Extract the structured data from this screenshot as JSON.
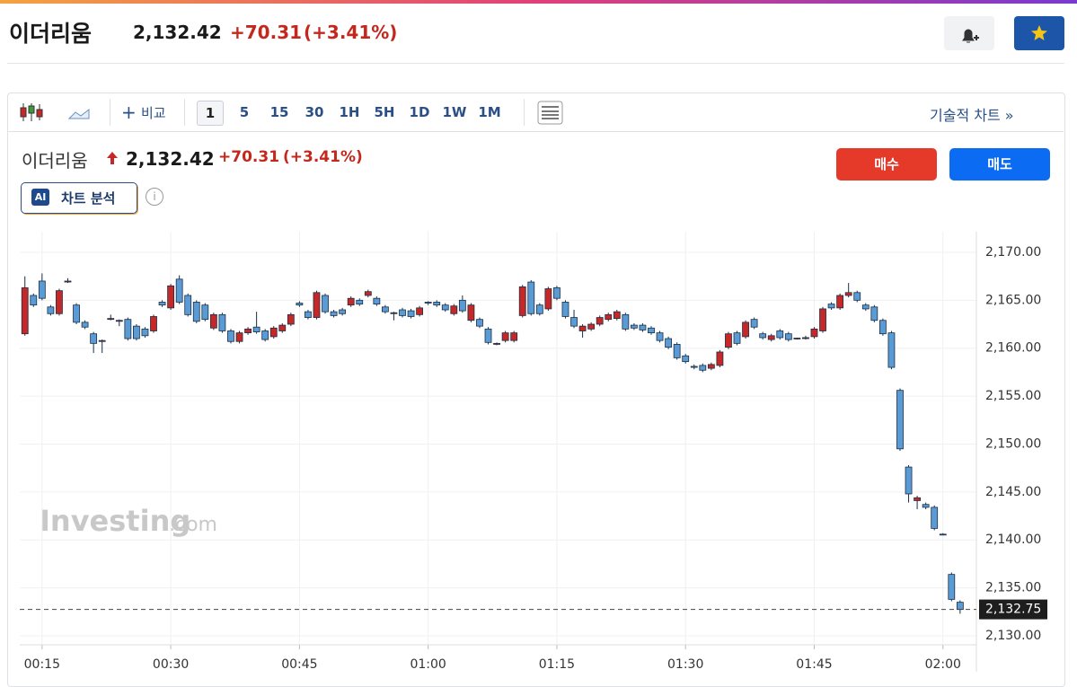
{
  "header": {
    "name": "이더리움",
    "price": "2,132.42",
    "change": "+70.31",
    "change_pct": "(+3.41%)"
  },
  "toolbar": {
    "compare": "비교",
    "intervals": [
      "1",
      "5",
      "15",
      "30",
      "1H",
      "5H",
      "1D",
      "1W",
      "1M"
    ],
    "selected": "1",
    "technical": "기술적 차트 »"
  },
  "quote": {
    "name": "이더리움",
    "price": "2,132.42",
    "change": "+70.31",
    "change_pct": "(+3.41%)"
  },
  "buttons": {
    "buy": "매수",
    "sell": "매도"
  },
  "ai": {
    "icon": "AI",
    "label": "차트 분석"
  },
  "watermark": {
    "brand": "Investing",
    "domain": ".com"
  },
  "chart_data": {
    "type": "candlestick",
    "x": [
      13,
      14,
      15,
      16,
      17,
      18,
      19,
      20,
      21,
      22,
      23,
      24,
      25,
      26,
      27,
      28,
      29,
      30,
      31,
      32,
      33,
      34,
      35,
      36,
      37,
      38,
      39,
      40,
      41,
      42,
      43,
      44,
      45,
      46,
      47,
      48,
      49,
      50,
      51,
      52,
      53,
      54,
      55,
      56,
      57,
      58,
      59,
      60,
      61,
      62,
      63,
      64,
      65,
      66,
      67,
      68,
      69,
      70,
      71,
      72,
      73,
      74,
      75,
      76,
      77,
      78,
      79,
      80,
      81,
      82,
      83,
      84,
      85,
      86,
      87,
      88,
      89,
      90,
      91,
      92,
      93,
      94,
      95,
      96,
      97,
      98,
      99,
      100,
      101,
      102,
      103,
      104,
      105,
      106,
      107,
      108,
      109,
      110,
      111,
      112,
      113,
      114,
      115,
      116,
      117,
      118,
      119,
      120,
      121,
      122
    ],
    "ohlc": [
      [
        2161.5,
        2167.5,
        2161.3,
        2166.3
      ],
      [
        2165.5,
        2165.7,
        2164.3,
        2164.5
      ],
      [
        2167.0,
        2167.8,
        2165.0,
        2165.2
      ],
      [
        2164.3,
        2164.5,
        2163.4,
        2163.6
      ],
      [
        2163.6,
        2166.2,
        2163.4,
        2166.0
      ],
      [
        2166.9,
        2167.3,
        2166.8,
        2167.0
      ],
      [
        2164.5,
        2164.7,
        2162.5,
        2162.7
      ],
      [
        2162.7,
        2162.9,
        2162.0,
        2162.2
      ],
      [
        2161.5,
        2161.7,
        2159.5,
        2160.5
      ],
      [
        2160.7,
        2160.9,
        2159.5,
        2160.8
      ],
      [
        2163.0,
        2163.5,
        2162.9,
        2163.1
      ],
      [
        2162.8,
        2163.0,
        2162.3,
        2162.9
      ],
      [
        2163.0,
        2163.2,
        2160.8,
        2161.0
      ],
      [
        2162.3,
        2162.5,
        2160.8,
        2161.0
      ],
      [
        2162.0,
        2162.2,
        2161.1,
        2161.3
      ],
      [
        2161.8,
        2163.5,
        2161.6,
        2163.3
      ],
      [
        2164.8,
        2165.0,
        2164.3,
        2164.5
      ],
      [
        2164.2,
        2166.7,
        2164.0,
        2166.5
      ],
      [
        2167.2,
        2167.6,
        2164.6,
        2164.8
      ],
      [
        2165.5,
        2165.7,
        2163.3,
        2163.5
      ],
      [
        2164.8,
        2165.0,
        2162.6,
        2162.8
      ],
      [
        2164.5,
        2164.7,
        2162.8,
        2163.0
      ],
      [
        2162.1,
        2163.7,
        2161.9,
        2163.5
      ],
      [
        2163.5,
        2163.7,
        2161.6,
        2161.8
      ],
      [
        2161.8,
        2162.0,
        2160.5,
        2160.7
      ],
      [
        2160.7,
        2161.8,
        2160.5,
        2161.6
      ],
      [
        2161.6,
        2162.2,
        2161.4,
        2162.0
      ],
      [
        2162.2,
        2163.8,
        2161.5,
        2161.7
      ],
      [
        2161.8,
        2162.0,
        2160.7,
        2160.9
      ],
      [
        2161.2,
        2162.3,
        2161.0,
        2162.1
      ],
      [
        2161.8,
        2162.6,
        2161.6,
        2162.4
      ],
      [
        2162.5,
        2163.7,
        2162.3,
        2163.5
      ],
      [
        2164.7,
        2164.9,
        2164.3,
        2164.5
      ],
      [
        2163.8,
        2164.0,
        2163.0,
        2163.2
      ],
      [
        2163.2,
        2166.0,
        2163.0,
        2165.8
      ],
      [
        2165.5,
        2165.7,
        2163.6,
        2163.8
      ],
      [
        2163.8,
        2164.0,
        2163.2,
        2163.4
      ],
      [
        2164.0,
        2164.2,
        2163.4,
        2163.6
      ],
      [
        2164.5,
        2165.4,
        2164.3,
        2165.2
      ],
      [
        2165.0,
        2165.2,
        2164.4,
        2164.6
      ],
      [
        2165.5,
        2166.1,
        2165.3,
        2165.9
      ],
      [
        2165.2,
        2165.4,
        2164.4,
        2164.6
      ],
      [
        2164.3,
        2164.5,
        2163.6,
        2163.8
      ],
      [
        2163.6,
        2163.8,
        2162.9,
        2163.7
      ],
      [
        2164.0,
        2164.2,
        2163.2,
        2163.4
      ],
      [
        2163.9,
        2164.1,
        2163.1,
        2163.3
      ],
      [
        2163.5,
        2164.4,
        2163.3,
        2164.2
      ],
      [
        2164.8,
        2164.9,
        2164.5,
        2164.7
      ],
      [
        2164.8,
        2165.0,
        2164.3,
        2164.5
      ],
      [
        2164.5,
        2164.7,
        2163.8,
        2164.0
      ],
      [
        2163.6,
        2164.6,
        2163.4,
        2164.4
      ],
      [
        2165.0,
        2165.5,
        2163.7,
        2163.9
      ],
      [
        2162.9,
        2164.7,
        2162.7,
        2164.5
      ],
      [
        2163.0,
        2163.2,
        2162.1,
        2162.3
      ],
      [
        2162.0,
        2162.2,
        2160.4,
        2160.6
      ],
      [
        2160.4,
        2160.6,
        2160.3,
        2160.5
      ],
      [
        2160.8,
        2161.8,
        2160.6,
        2161.6
      ],
      [
        2160.8,
        2161.8,
        2160.6,
        2161.6
      ],
      [
        2163.4,
        2166.6,
        2163.2,
        2166.4
      ],
      [
        2166.9,
        2167.1,
        2163.4,
        2163.6
      ],
      [
        2164.5,
        2164.7,
        2163.4,
        2163.6
      ],
      [
        2164.1,
        2166.4,
        2163.9,
        2166.2
      ],
      [
        2166.3,
        2166.5,
        2165.0,
        2165.2
      ],
      [
        2164.8,
        2165.0,
        2163.1,
        2163.3
      ],
      [
        2163.2,
        2164.0,
        2162.1,
        2162.3
      ],
      [
        2161.8,
        2162.5,
        2161.1,
        2162.3
      ],
      [
        2162.0,
        2162.7,
        2161.8,
        2162.5
      ],
      [
        2162.5,
        2163.4,
        2162.3,
        2163.2
      ],
      [
        2163.0,
        2163.7,
        2162.8,
        2163.5
      ],
      [
        2163.1,
        2164.0,
        2162.9,
        2163.8
      ],
      [
        2163.5,
        2163.7,
        2161.8,
        2162.0
      ],
      [
        2162.4,
        2162.6,
        2161.9,
        2162.1
      ],
      [
        2162.4,
        2162.6,
        2161.7,
        2161.9
      ],
      [
        2162.1,
        2162.3,
        2161.4,
        2161.6
      ],
      [
        2161.6,
        2161.8,
        2160.6,
        2160.8
      ],
      [
        2161.0,
        2161.2,
        2159.9,
        2160.1
      ],
      [
        2160.4,
        2160.6,
        2158.8,
        2159.0
      ],
      [
        2159.2,
        2159.4,
        2158.4,
        2158.6
      ],
      [
        2158.1,
        2158.3,
        2157.8,
        2158.0
      ],
      [
        2158.2,
        2158.4,
        2157.5,
        2157.7
      ],
      [
        2157.9,
        2158.5,
        2157.7,
        2158.3
      ],
      [
        2158.2,
        2159.8,
        2158.0,
        2159.6
      ],
      [
        2160.1,
        2161.7,
        2159.9,
        2161.5
      ],
      [
        2161.6,
        2161.8,
        2160.3,
        2160.5
      ],
      [
        2161.2,
        2162.9,
        2161.0,
        2162.7
      ],
      [
        2163.0,
        2163.2,
        2162.0,
        2162.2
      ],
      [
        2161.5,
        2161.7,
        2160.9,
        2161.1
      ],
      [
        2160.9,
        2161.5,
        2160.7,
        2161.3
      ],
      [
        2161.8,
        2162.0,
        2160.9,
        2161.1
      ],
      [
        2161.5,
        2161.7,
        2160.7,
        2160.9
      ],
      [
        2161.0,
        2161.1,
        2160.9,
        2161.05
      ],
      [
        2161.0,
        2161.3,
        2160.9,
        2161.1
      ],
      [
        2161.2,
        2162.2,
        2161.0,
        2162.0
      ],
      [
        2161.8,
        2164.3,
        2161.6,
        2164.1
      ],
      [
        2164.6,
        2164.8,
        2164.0,
        2164.2
      ],
      [
        2164.2,
        2165.7,
        2164.0,
        2165.5
      ],
      [
        2165.5,
        2166.8,
        2165.3,
        2165.8
      ],
      [
        2165.8,
        2166.0,
        2164.8,
        2165.0
      ],
      [
        2164.5,
        2164.7,
        2163.9,
        2164.1
      ],
      [
        2164.3,
        2164.5,
        2162.7,
        2162.9
      ],
      [
        2162.9,
        2163.1,
        2161.3,
        2161.5
      ],
      [
        2161.6,
        2161.8,
        2157.8,
        2158.0
      ],
      [
        2155.6,
        2155.8,
        2149.3,
        2149.5
      ],
      [
        2147.6,
        2147.8,
        2143.9,
        2144.8
      ],
      [
        2144.1,
        2144.6,
        2143.2,
        2144.4
      ],
      [
        2143.7,
        2143.9,
        2143.2,
        2143.4
      ],
      [
        2143.4,
        2143.6,
        2141.0,
        2141.2
      ],
      [
        2140.6,
        2140.7,
        2140.5,
        2140.55
      ],
      [
        2136.4,
        2136.6,
        2133.6,
        2133.8
      ],
      [
        2133.5,
        2133.7,
        2132.3,
        2132.75
      ]
    ],
    "up_color": "#c62828",
    "down_color": "#5b9bd5",
    "edge_color": "#1a2f45",
    "xlim": [
      12.4,
      123.9
    ],
    "xticks": [
      {
        "value": 15,
        "label": "00:15"
      },
      {
        "value": 30,
        "label": "00:30"
      },
      {
        "value": 45,
        "label": "00:45"
      },
      {
        "value": 60,
        "label": "01:00"
      },
      {
        "value": 75,
        "label": "01:15"
      },
      {
        "value": 90,
        "label": "01:30"
      },
      {
        "value": 105,
        "label": "01:45"
      },
      {
        "value": 120,
        "label": "02:00"
      }
    ],
    "ylim": [
      2129.06,
      2172.15
    ],
    "yticks": [
      {
        "value": 2130,
        "label": "2,130.00"
      },
      {
        "value": 2135,
        "label": "2,135.00"
      },
      {
        "value": 2140,
        "label": "2,140.00"
      },
      {
        "value": 2145,
        "label": "2,145.00"
      },
      {
        "value": 2150,
        "label": "2,150.00"
      },
      {
        "value": 2155,
        "label": "2,155.00"
      },
      {
        "value": 2160,
        "label": "2,160.00"
      },
      {
        "value": 2165,
        "label": "2,165.00"
      },
      {
        "value": 2170,
        "label": "2,170.00"
      }
    ],
    "grid": true,
    "last_price": {
      "value": 2132.75,
      "label": "2,132.75"
    }
  }
}
